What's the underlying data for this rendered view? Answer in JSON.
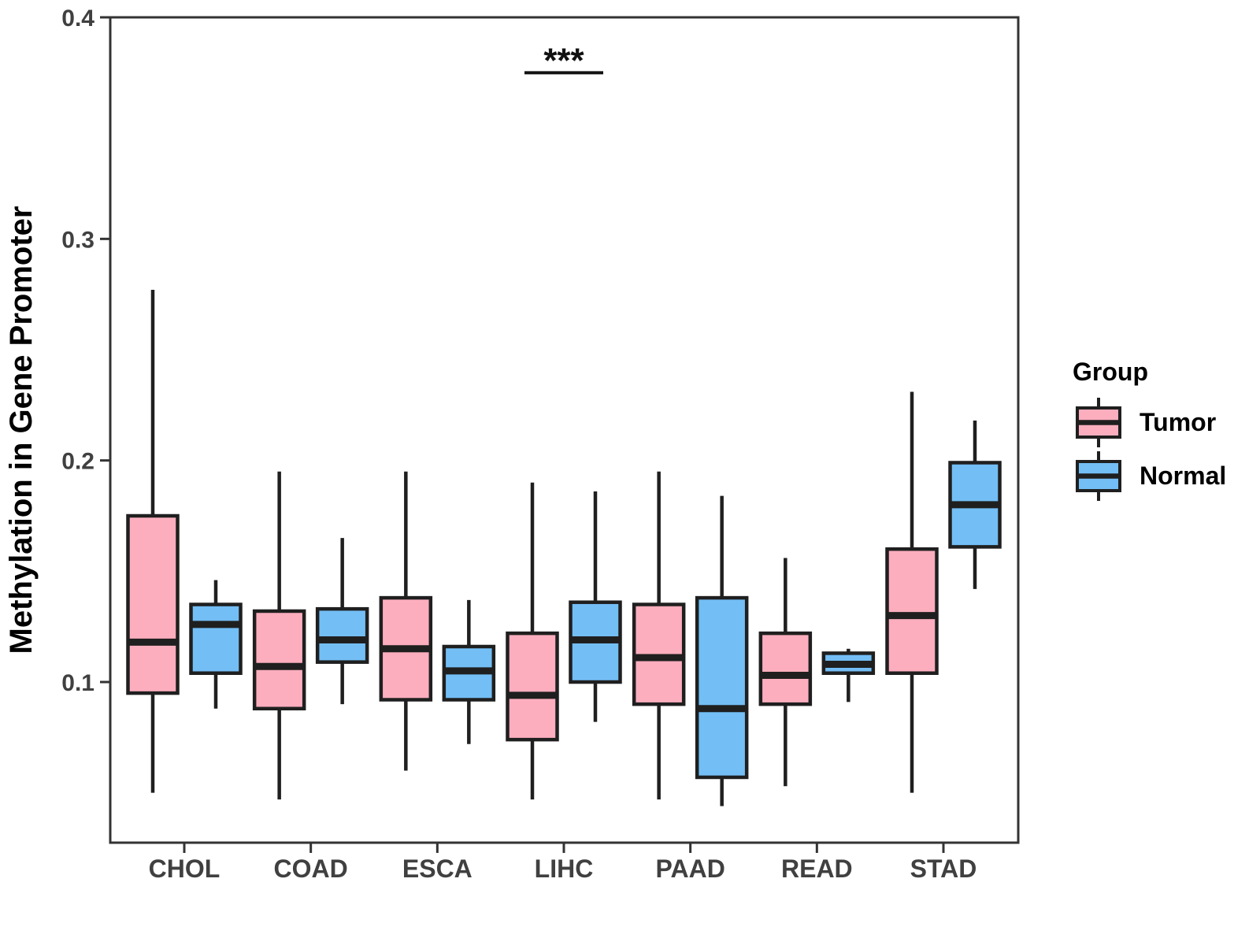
{
  "figure": {
    "background": "#ffffff",
    "axis_color": "#333333",
    "tick_label_color": "#404040",
    "box_border_color": "#1f1f1f"
  },
  "y_axis": {
    "label": "Methylation in Gene Promoter",
    "tick_labels": [
      "0.1",
      "0.2",
      "0.3",
      "0.4"
    ]
  },
  "x_axis": {
    "tick_labels": [
      "CHOL",
      "COAD",
      "ESCA",
      "LIHC",
      "PAAD",
      "READ",
      "STAD"
    ]
  },
  "legend": {
    "title": "Group",
    "entries": [
      {
        "label": "Tumor",
        "color": "#FCAEBE"
      },
      {
        "label": "Normal",
        "color": "#73BEF5"
      }
    ]
  },
  "chart_data": {
    "type": "boxplot",
    "orientation": "vertical",
    "title": "",
    "xlabel": "",
    "ylabel": "Methylation in Gene Promoter",
    "categories": [
      "CHOL",
      "COAD",
      "ESCA",
      "LIHC",
      "PAAD",
      "READ",
      "STAD"
    ],
    "y_ticks": [
      0.1,
      0.2,
      0.3,
      0.4
    ],
    "ylim": [
      0.027,
      0.4
    ],
    "grid": false,
    "legend_position": "right",
    "legend_title": "Group",
    "series": [
      {
        "name": "Tumor",
        "color": "#FCAEBE",
        "boxes": [
          {
            "category": "CHOL",
            "whisker_low": 0.05,
            "q1": 0.095,
            "median": 0.118,
            "q3": 0.175,
            "whisker_high": 0.277
          },
          {
            "category": "COAD",
            "whisker_low": 0.047,
            "q1": 0.088,
            "median": 0.107,
            "q3": 0.132,
            "whisker_high": 0.195
          },
          {
            "category": "ESCA",
            "whisker_low": 0.06,
            "q1": 0.092,
            "median": 0.115,
            "q3": 0.138,
            "whisker_high": 0.195
          },
          {
            "category": "LIHC",
            "whisker_low": 0.047,
            "q1": 0.074,
            "median": 0.094,
            "q3": 0.122,
            "whisker_high": 0.19
          },
          {
            "category": "PAAD",
            "whisker_low": 0.047,
            "q1": 0.09,
            "median": 0.111,
            "q3": 0.135,
            "whisker_high": 0.195
          },
          {
            "category": "READ",
            "whisker_low": 0.053,
            "q1": 0.09,
            "median": 0.103,
            "q3": 0.122,
            "whisker_high": 0.156
          },
          {
            "category": "STAD",
            "whisker_low": 0.05,
            "q1": 0.104,
            "median": 0.13,
            "q3": 0.16,
            "whisker_high": 0.231
          }
        ]
      },
      {
        "name": "Normal",
        "color": "#73BEF5",
        "boxes": [
          {
            "category": "CHOL",
            "whisker_low": 0.088,
            "q1": 0.104,
            "median": 0.126,
            "q3": 0.135,
            "whisker_high": 0.146
          },
          {
            "category": "COAD",
            "whisker_low": 0.09,
            "q1": 0.109,
            "median": 0.119,
            "q3": 0.133,
            "whisker_high": 0.165
          },
          {
            "category": "ESCA",
            "whisker_low": 0.072,
            "q1": 0.092,
            "median": 0.105,
            "q3": 0.116,
            "whisker_high": 0.137
          },
          {
            "category": "LIHC",
            "whisker_low": 0.082,
            "q1": 0.1,
            "median": 0.119,
            "q3": 0.136,
            "whisker_high": 0.186
          },
          {
            "category": "PAAD",
            "whisker_low": 0.044,
            "q1": 0.057,
            "median": 0.088,
            "q3": 0.138,
            "whisker_high": 0.184
          },
          {
            "category": "READ",
            "whisker_low": 0.091,
            "q1": 0.104,
            "median": 0.108,
            "q3": 0.113,
            "whisker_high": 0.115
          },
          {
            "category": "STAD",
            "whisker_low": 0.142,
            "q1": 0.161,
            "median": 0.18,
            "q3": 0.199,
            "whisker_high": 0.218
          }
        ]
      }
    ],
    "annotations": [
      {
        "text": "***",
        "category": "LIHC",
        "line_value": 0.375
      }
    ]
  }
}
